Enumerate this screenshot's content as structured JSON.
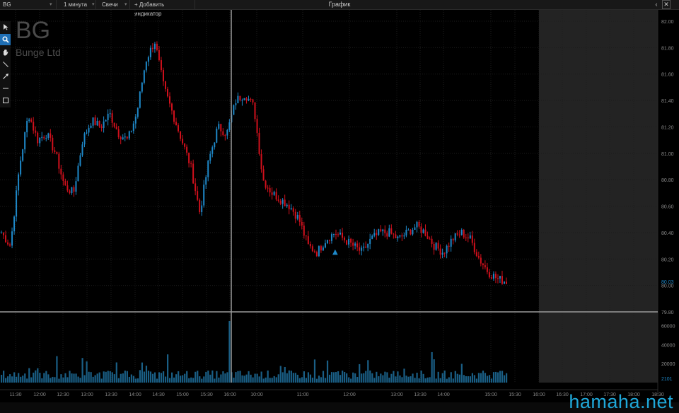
{
  "header": {
    "symbol": "BG",
    "interval": "1 минута",
    "chart_type": "Свечи",
    "add_indicator": "+ Добавить индикатор",
    "window_title": "График",
    "back_glyph": "‹",
    "close_glyph": "✕",
    "caret": "▾"
  },
  "overlay": {
    "ticker": "BG",
    "company": "Bunge Ltd"
  },
  "tools": [
    "pointer-icon",
    "zoom-icon",
    "hand-icon",
    "line-icon",
    "arrow-icon",
    "horizontal-line-icon",
    "rectangle-icon"
  ],
  "colors": {
    "up": "#1e88c8",
    "down": "#d0101c",
    "volume": "#1a5f86",
    "grid": "#1c1c1c",
    "crosshair": "#9a9a9a",
    "future_area": "#232323",
    "price_tag": "#1e88c8",
    "watermark": "#1fa7d8"
  },
  "chart_data": [
    {
      "type": "line",
      "title": "",
      "series": [
        {
          "name": "",
          "values": [
            80.4,
            80.3,
            80.9,
            81.3,
            81.1,
            81.15,
            81.0,
            80.75,
            80.7,
            81.1,
            81.25,
            81.2,
            81.3,
            81.15,
            81.1,
            81.3,
            81.7,
            81.85,
            81.5,
            81.3,
            81.1,
            80.9,
            80.55,
            80.95,
            81.2,
            81.15,
            81.4,
            81.45,
            81.35,
            80.8,
            80.7,
            80.65,
            80.6,
            80.5,
            80.3,
            80.25,
            80.35,
            80.4,
            80.35,
            80.3,
            80.25,
            80.35,
            80.4,
            80.4,
            80.35,
            80.4,
            80.45,
            80.4,
            80.3,
            80.25,
            80.35,
            80.4,
            80.35,
            80.2,
            80.1,
            80.05,
            80.03
          ]
        }
      ],
      "ylim": [
        79.8,
        82.0
      ],
      "y_ticks": [
        "82.00",
        "81.80",
        "81.60",
        "81.40",
        "81.20",
        "81.00",
        "80.80",
        "80.60",
        "80.40",
        "80.20",
        "80.00",
        "79.80"
      ],
      "x_ticks": [
        "11:30",
        "12:00",
        "12:30",
        "13:00",
        "13:30",
        "14:00",
        "14:30",
        "15:00",
        "15:30",
        "16:00",
        "10:00",
        "11:00",
        "12:00",
        "13:00",
        "13:30",
        "14:00",
        "15:00",
        "15:30",
        "16:00",
        "16:30",
        "17:00",
        "17:30",
        "18:00",
        "18:30"
      ],
      "last_price": "80.03",
      "crosshair_price": "79.80",
      "marker": "▲"
    },
    {
      "type": "bar",
      "title": "",
      "ylim": [
        0,
        65000
      ],
      "y_ticks": [
        "60000",
        "40000",
        "20000"
      ],
      "last_volume": "2101",
      "spike_volume": 65000
    }
  ],
  "watermark": "hamaha.net"
}
